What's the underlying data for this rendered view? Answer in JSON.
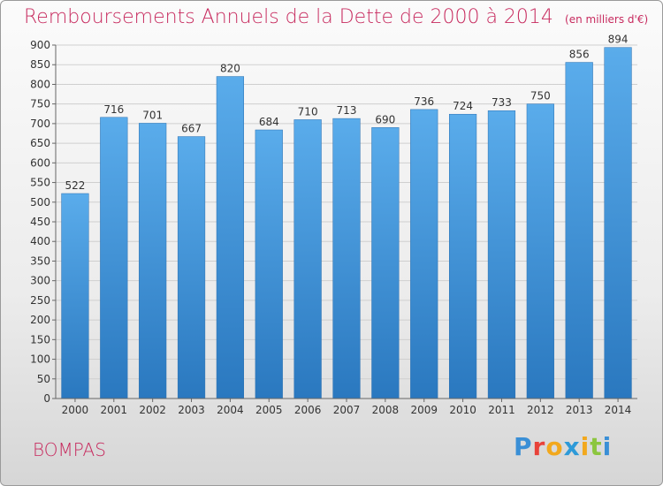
{
  "chart_data": {
    "type": "bar",
    "title": "Remboursements Annuels de la Dette de 2000 à 2014",
    "unit": "(en milliers d'€)",
    "categories": [
      "2000",
      "2001",
      "2002",
      "2003",
      "2004",
      "2005",
      "2006",
      "2007",
      "2008",
      "2009",
      "2010",
      "2011",
      "2012",
      "2013",
      "2014"
    ],
    "values": [
      522,
      716,
      701,
      667,
      820,
      684,
      710,
      713,
      690,
      736,
      724,
      733,
      750,
      856,
      894
    ],
    "ylim": [
      0,
      900
    ],
    "ytick_step": 50,
    "grid": true,
    "bar_color": "#3a8fd6"
  },
  "footer": {
    "city": "BOMPAS",
    "logo_text": "Proxiti",
    "logo_colors": [
      "#3a8fd6",
      "#e8423a",
      "#f2a81d",
      "#2e9ad8",
      "#f2a81d",
      "#8cc63f",
      "#3a8fd6"
    ]
  }
}
